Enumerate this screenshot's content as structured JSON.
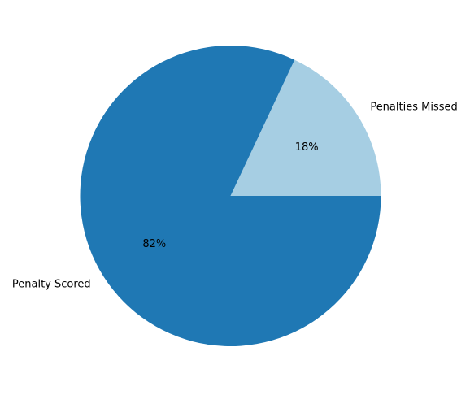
{
  "chart_data": {
    "type": "pie",
    "title": "",
    "slices": [
      {
        "label": "Penalties Missed",
        "value": 18,
        "pct_label": "18%",
        "color": "#a6cee3"
      },
      {
        "label": "Penalty Scored",
        "value": 82,
        "pct_label": "82%",
        "color": "#1f78b4"
      }
    ],
    "start_angle_deg": 0,
    "direction": "counterclockwise",
    "legend": "none"
  }
}
